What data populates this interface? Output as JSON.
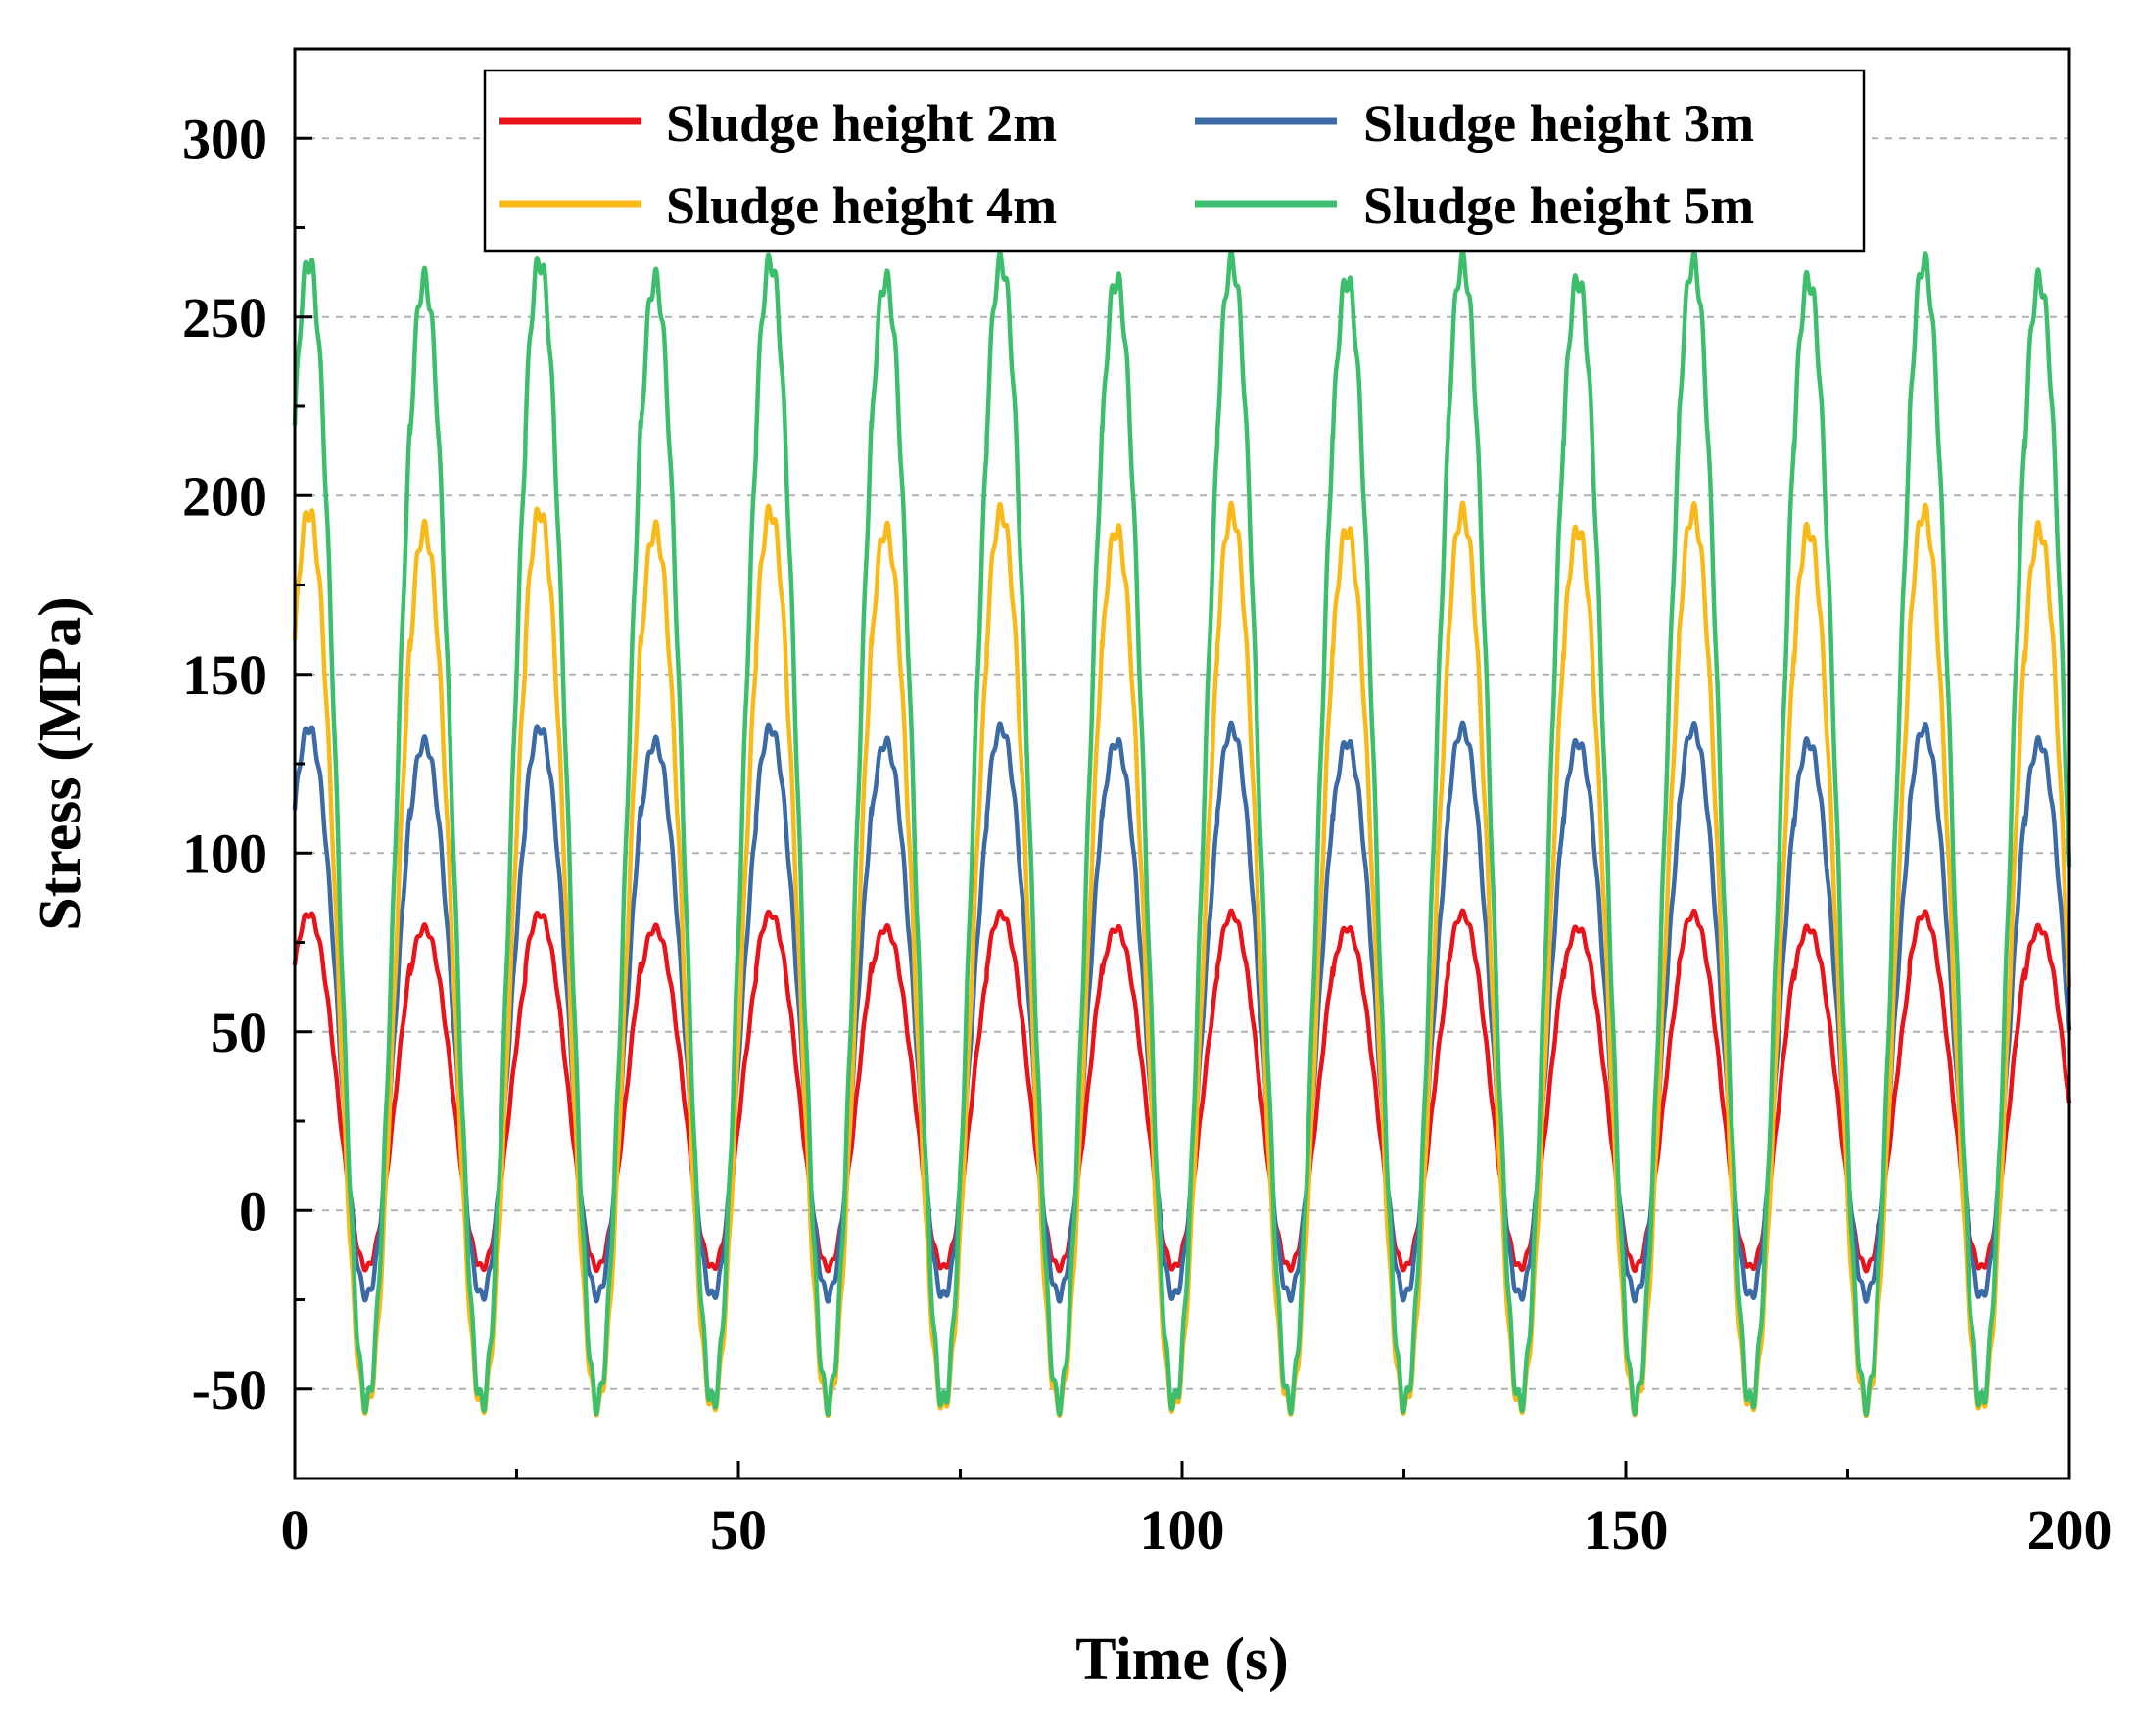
{
  "chart_data": {
    "type": "line",
    "title": "",
    "xlabel": "Time (s)",
    "ylabel": "Stress (MPa)",
    "xlim": [
      0,
      200
    ],
    "ylim": [
      -75,
      325
    ],
    "xticks": [
      0,
      50,
      100,
      150,
      200
    ],
    "xtick_labels": [
      "0",
      "50",
      "100",
      "150",
      "200"
    ],
    "x_minor_ticks": [
      25,
      75,
      125,
      175
    ],
    "yticks": [
      -50,
      0,
      50,
      100,
      150,
      200,
      250,
      300
    ],
    "ytick_labels": [
      "-50",
      "0",
      "50",
      "100",
      "150",
      "200",
      "250",
      "300"
    ],
    "y_minor_ticks": [
      -25,
      25,
      75,
      125,
      175,
      225,
      275
    ],
    "grid": "horizontal dashed",
    "legend_position": "top-center",
    "period_s": 13,
    "series": [
      {
        "name": "Sludge height 2m",
        "color": "#e8141b",
        "mean": 32.5,
        "amplitude": 48.5,
        "asymmetry": 2,
        "min": -16,
        "max": 82
      },
      {
        "name": "Sludge height 3m",
        "color": "#3b6aa4",
        "mean": 54.5,
        "amplitude": 78.5,
        "asymmetry": 2,
        "min": -27,
        "max": 135
      },
      {
        "name": "Sludge height 4m",
        "color": "#f8b91a",
        "mean": 69,
        "amplitude": 124,
        "asymmetry": 2.5,
        "min": -46,
        "max": 195
      },
      {
        "name": "Sludge height 5m",
        "color": "#3dbe6c",
        "mean": 104.5,
        "amplitude": 158.5,
        "asymmetry": 2.5,
        "min": -56,
        "max": 266
      }
    ]
  }
}
